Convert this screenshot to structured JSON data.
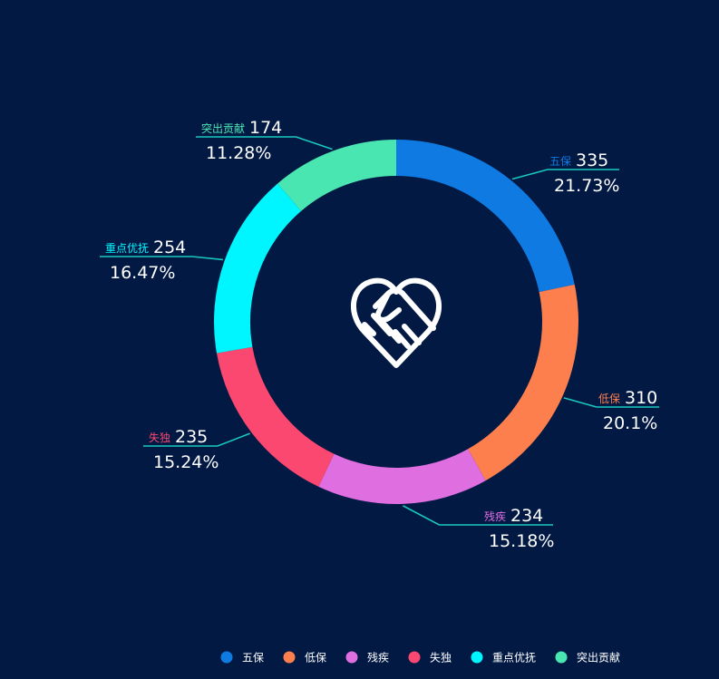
{
  "chart_data": {
    "type": "pie",
    "variant": "donut",
    "categories": [
      "五保",
      "低保",
      "残疾",
      "失独",
      "重点优抚",
      "突出贡献"
    ],
    "values": [
      335,
      310,
      234,
      235,
      254,
      174
    ],
    "percentages": [
      "21.73%",
      "20.1%",
      "15.18%",
      "15.24%",
      "16.47%",
      "11.28%"
    ],
    "colors": [
      "#0f7be2",
      "#fd7f4e",
      "#df6ee0",
      "#fb4870",
      "#00f6fe",
      "#4ae6b2"
    ],
    "leader_line_color": "#19c9bd",
    "legend_placement": "bottom-right",
    "center_icon": "heart-handshake-icon"
  }
}
